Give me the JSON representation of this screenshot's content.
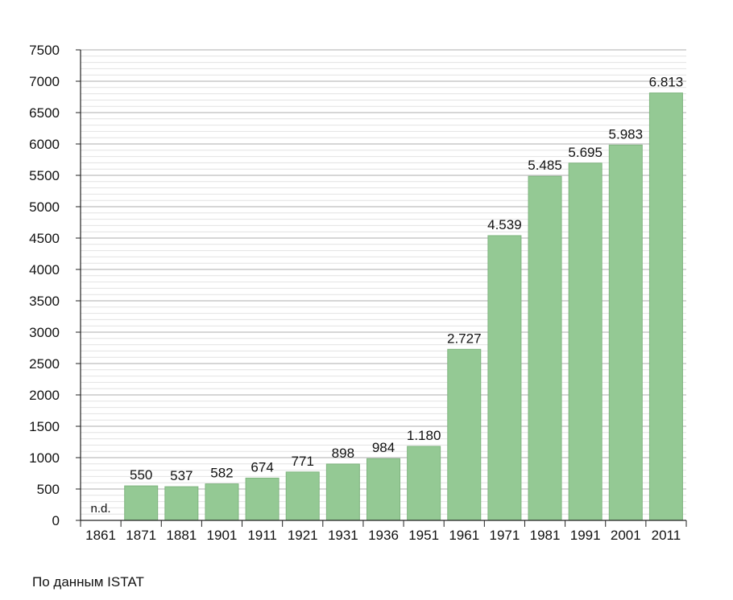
{
  "chart_data": {
    "type": "bar",
    "categories": [
      "1861",
      "1871",
      "1881",
      "1901",
      "1911",
      "1921",
      "1931",
      "1936",
      "1951",
      "1961",
      "1971",
      "1981",
      "1991",
      "2001",
      "2011"
    ],
    "values": [
      null,
      550,
      537,
      582,
      674,
      771,
      898,
      984,
      1180,
      2727,
      4539,
      5485,
      5695,
      5983,
      6813
    ],
    "data_labels": [
      "n.d.",
      "550",
      "537",
      "582",
      "674",
      "771",
      "898",
      "984",
      "1.180",
      "2.727",
      "4.539",
      "5.485",
      "5.695",
      "5.983",
      "6.813"
    ],
    "ylim": [
      0,
      7500
    ],
    "yticks": [
      0,
      500,
      1000,
      1500,
      2000,
      2500,
      3000,
      3500,
      4000,
      4500,
      5000,
      5500,
      6000,
      6500,
      7000,
      7500
    ],
    "grid": true,
    "title": "",
    "xlabel": "",
    "ylabel": ""
  },
  "colors": {
    "bar_fill": "#94c994",
    "bar_stroke": "#7fb57f",
    "grid_line": "#c8c8c8",
    "axis": "#222222"
  },
  "source_text": "По данным  ISTAT"
}
